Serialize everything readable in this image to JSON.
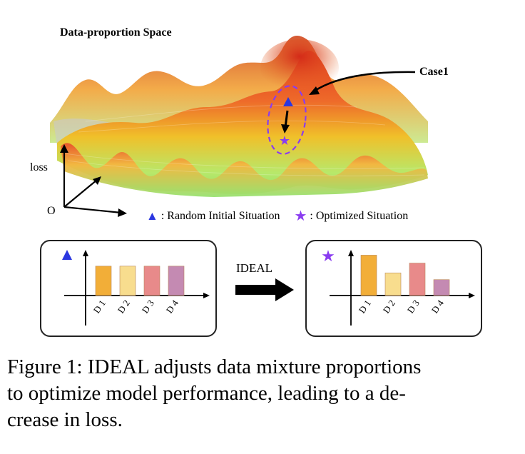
{
  "figure": {
    "space_title": "Data-proportion Space",
    "case_label": "Case1",
    "axis_loss_label": "loss",
    "axis_origin_label": "O",
    "legend": {
      "triangle_text": ": Random Initial Situation",
      "star_text": ": Optimized Situation"
    },
    "method_label": "IDEAL",
    "colors": {
      "triangle": "#2b37e0",
      "star": "#8a3cf0",
      "ellipse": "#8a3cf0",
      "surface_high": "#e03a1e",
      "surface_mid": "#f0c02a",
      "surface_low": "#8ee06a"
    },
    "panels": [
      {
        "marker": "triangle-icon",
        "categories": [
          "D 1",
          "D 2",
          "D 3",
          "D 4"
        ],
        "values": [
          0.48,
          0.48,
          0.48,
          0.48
        ],
        "bar_colors": [
          "#f2ae38",
          "#f8dd8e",
          "#e88a8a",
          "#c48ab2"
        ]
      },
      {
        "marker": "star-icon",
        "categories": [
          "D 1",
          "D 2",
          "D 3",
          "D 4"
        ],
        "values": [
          0.66,
          0.37,
          0.53,
          0.26
        ],
        "bar_colors": [
          "#f2ae38",
          "#f8dd8e",
          "#e88a8a",
          "#c48ab2"
        ]
      }
    ]
  },
  "caption": {
    "lines": [
      "Figure 1: IDEAL adjusts data mixture proportions",
      "to optimize model performance, leading to a de-",
      "crease in loss."
    ]
  }
}
